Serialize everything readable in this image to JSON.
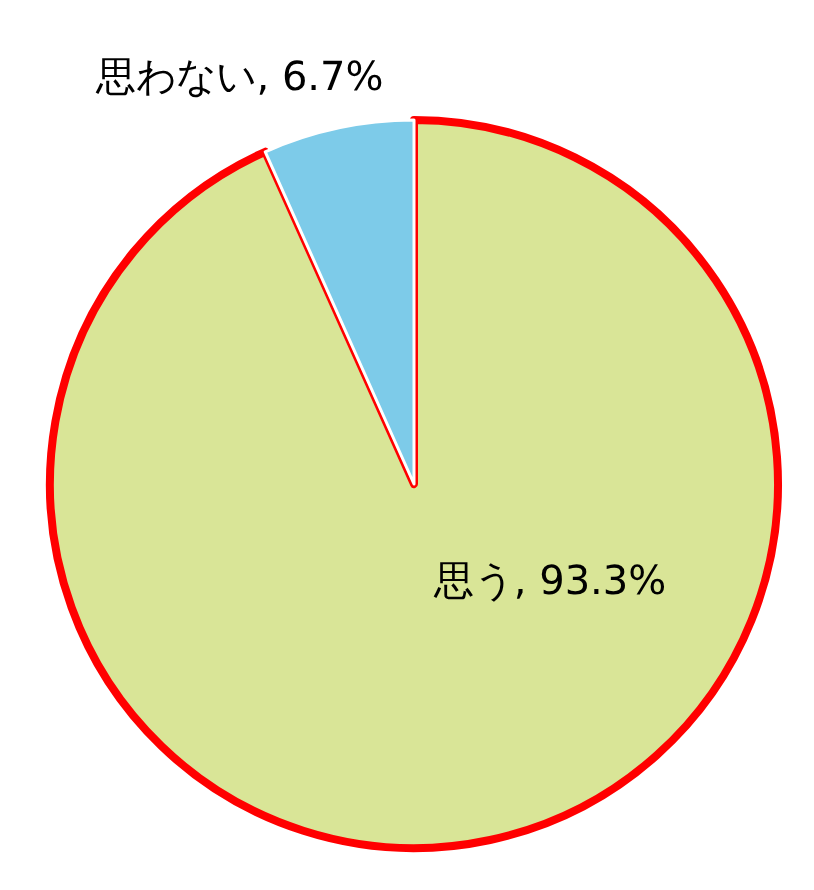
{
  "chart_data": {
    "type": "pie",
    "categories": [
      "思う",
      "思わない"
    ],
    "values": [
      93.3,
      6.7
    ],
    "value_labels": [
      "93.3%",
      "6.7%"
    ],
    "colors": [
      "#d9e597",
      "#7dcbe9"
    ]
  }
}
